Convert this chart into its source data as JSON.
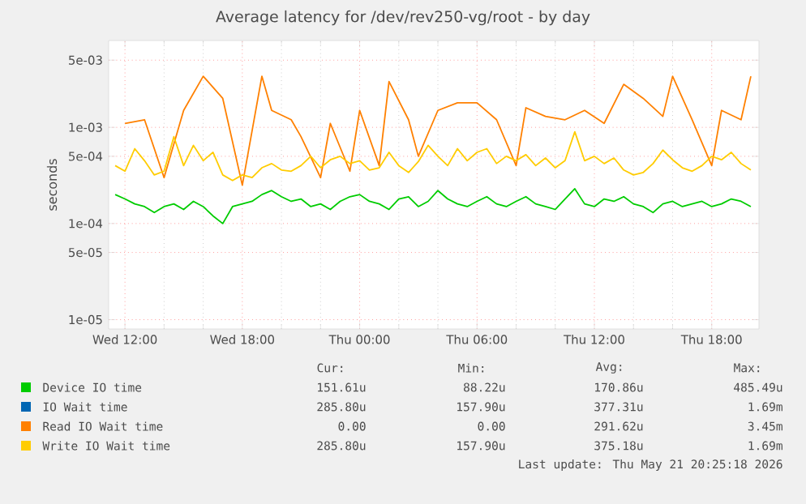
{
  "chart_data": {
    "type": "line",
    "title": "Average latency for /dev/rev250-vg/root - by day",
    "ylabel": "seconds",
    "log": "y",
    "grid": true,
    "legend": "bottom",
    "marker": "none",
    "line_style": "solid",
    "xlim": [
      "2026-05-20T11:10",
      "2026-05-21T20:25"
    ],
    "xticks": [
      {
        "value": "2026-05-20T12:00",
        "label": "Wed 12:00"
      },
      {
        "value": "2026-05-20T18:00",
        "label": "Wed 18:00"
      },
      {
        "value": "2026-05-21T00:00",
        "label": "Thu 00:00"
      },
      {
        "value": "2026-05-21T06:00",
        "label": "Thu 06:00"
      },
      {
        "value": "2026-05-21T12:00",
        "label": "Thu 12:00"
      },
      {
        "value": "2026-05-21T18:00",
        "label": "Thu 18:00"
      }
    ],
    "ylim": [
      8e-06,
      0.008
    ],
    "yticks": [
      {
        "value": 1e-05,
        "label": "1e-05"
      },
      {
        "value": 5e-05,
        "label": "5e-05"
      },
      {
        "value": 0.0001,
        "label": "1e-04"
      },
      {
        "value": 0.0005,
        "label": "5e-04"
      },
      {
        "value": 0.001,
        "label": "1e-03"
      },
      {
        "value": 0.005,
        "label": "5e-03"
      }
    ],
    "x": [
      "2026-05-20T11:30",
      "2026-05-20T12:00",
      "2026-05-20T12:30",
      "2026-05-20T13:00",
      "2026-05-20T13:30",
      "2026-05-20T14:00",
      "2026-05-20T14:30",
      "2026-05-20T15:00",
      "2026-05-20T15:30",
      "2026-05-20T16:00",
      "2026-05-20T16:30",
      "2026-05-20T17:00",
      "2026-05-20T17:30",
      "2026-05-20T18:00",
      "2026-05-20T18:30",
      "2026-05-20T19:00",
      "2026-05-20T19:30",
      "2026-05-20T20:00",
      "2026-05-20T20:30",
      "2026-05-20T21:00",
      "2026-05-20T21:30",
      "2026-05-20T22:00",
      "2026-05-20T22:30",
      "2026-05-20T23:00",
      "2026-05-20T23:30",
      "2026-05-21T00:00",
      "2026-05-21T00:30",
      "2026-05-21T01:00",
      "2026-05-21T01:30",
      "2026-05-21T02:00",
      "2026-05-21T02:30",
      "2026-05-21T03:00",
      "2026-05-21T03:30",
      "2026-05-21T04:00",
      "2026-05-21T04:30",
      "2026-05-21T05:00",
      "2026-05-21T05:30",
      "2026-05-21T06:00",
      "2026-05-21T06:30",
      "2026-05-21T07:00",
      "2026-05-21T07:30",
      "2026-05-21T08:00",
      "2026-05-21T08:30",
      "2026-05-21T09:00",
      "2026-05-21T09:30",
      "2026-05-21T10:00",
      "2026-05-21T10:30",
      "2026-05-21T11:00",
      "2026-05-21T11:30",
      "2026-05-21T12:00",
      "2026-05-21T12:30",
      "2026-05-21T13:00",
      "2026-05-21T13:30",
      "2026-05-21T14:00",
      "2026-05-21T14:30",
      "2026-05-21T15:00",
      "2026-05-21T15:30",
      "2026-05-21T16:00",
      "2026-05-21T16:30",
      "2026-05-21T17:00",
      "2026-05-21T17:30",
      "2026-05-21T18:00",
      "2026-05-21T18:30",
      "2026-05-21T19:00",
      "2026-05-21T19:30",
      "2026-05-21T20:00"
    ],
    "series": [
      {
        "name": "Device IO time",
        "color": "#00cc00",
        "values": [
          0.0002,
          0.00018,
          0.00016,
          0.00015,
          0.00013,
          0.00015,
          0.00016,
          0.00014,
          0.00017,
          0.00015,
          0.00012,
          0.0001,
          0.00015,
          0.00016,
          0.00017,
          0.0002,
          0.00022,
          0.00019,
          0.00017,
          0.00018,
          0.00015,
          0.00016,
          0.00014,
          0.00017,
          0.00019,
          0.0002,
          0.00017,
          0.00016,
          0.00014,
          0.00018,
          0.00019,
          0.00015,
          0.00017,
          0.00022,
          0.00018,
          0.00016,
          0.00015,
          0.00017,
          0.00019,
          0.00016,
          0.00015,
          0.00017,
          0.00019,
          0.00016,
          0.00015,
          0.00014,
          0.00018,
          0.00023,
          0.00016,
          0.00015,
          0.00018,
          0.00017,
          0.00019,
          0.00016,
          0.00015,
          0.00013,
          0.00016,
          0.00017,
          0.00015,
          0.00016,
          0.00017,
          0.00015,
          0.00016,
          0.00018,
          0.00017,
          0.00015
        ]
      },
      {
        "name": "IO Wait time",
        "color": "#0066b3",
        "values": [
          null,
          null,
          null,
          null,
          null,
          null,
          null,
          null,
          null,
          null,
          null,
          null,
          null,
          null,
          null,
          null,
          null,
          null,
          null,
          null,
          null,
          null,
          null,
          null,
          null,
          null,
          null,
          null,
          null,
          null,
          null,
          null,
          null,
          null,
          null,
          null,
          null,
          null,
          null,
          null,
          null,
          null,
          null,
          null,
          null,
          null,
          null,
          null,
          null,
          null,
          null,
          null,
          null,
          null,
          null,
          null,
          null,
          null,
          null,
          null,
          null,
          null,
          null,
          null,
          null,
          null
        ]
      },
      {
        "name": "Read IO Wait time",
        "color": "#ff8000",
        "values": [
          null,
          0.0011,
          null,
          0.0012,
          null,
          0.0003,
          null,
          0.0015,
          null,
          0.0034,
          null,
          0.002,
          null,
          0.00025,
          null,
          0.0034,
          0.0015,
          null,
          0.0012,
          0.0008,
          null,
          0.0003,
          0.0011,
          null,
          0.00035,
          0.0015,
          null,
          0.0004,
          0.003,
          null,
          0.0012,
          0.0005,
          null,
          0.0015,
          null,
          0.0018,
          null,
          0.0018,
          null,
          0.0012,
          null,
          0.0004,
          0.0016,
          null,
          0.0013,
          null,
          0.0012,
          null,
          0.0015,
          null,
          0.0011,
          null,
          0.0028,
          null,
          0.002,
          null,
          0.0013,
          0.0034,
          null,
          0.0012,
          null,
          0.0004,
          0.0015,
          null,
          0.0012,
          0.0034
        ]
      },
      {
        "name": "Write IO Wait time",
        "color": "#ffcc00",
        "values": [
          0.0004,
          0.00035,
          0.0006,
          0.00045,
          0.00032,
          0.00035,
          0.0008,
          0.0004,
          0.00065,
          0.00045,
          0.00055,
          0.00032,
          0.00028,
          0.00032,
          0.0003,
          0.00038,
          0.00042,
          0.00036,
          0.00035,
          0.0004,
          0.0005,
          0.00038,
          0.00046,
          0.0005,
          0.00042,
          0.00045,
          0.00036,
          0.00038,
          0.00055,
          0.0004,
          0.00034,
          0.00044,
          0.00065,
          0.0005,
          0.0004,
          0.0006,
          0.00045,
          0.00055,
          0.0006,
          0.00042,
          0.0005,
          0.00045,
          0.00052,
          0.0004,
          0.00048,
          0.00038,
          0.00045,
          0.0009,
          0.00045,
          0.0005,
          0.00042,
          0.00048,
          0.00036,
          0.00032,
          0.00034,
          0.00042,
          0.00058,
          0.00046,
          0.00038,
          0.00035,
          0.0004,
          0.0005,
          0.00046,
          0.00055,
          0.00042,
          0.00036
        ]
      }
    ],
    "annotations": [
      "Cur:",
      "Min:",
      "Avg:",
      "Max:",
      "151.61u",
      "88.22u",
      "170.86u",
      "485.49u",
      "285.80u",
      "157.90u",
      "377.31u",
      "1.69m",
      "0.00",
      "0.00",
      "291.62u",
      "3.45m",
      "285.80u",
      "157.90u",
      "375.18u",
      "1.69m",
      "Last update: Thu May 21 20:25:18 2026"
    ]
  }
}
